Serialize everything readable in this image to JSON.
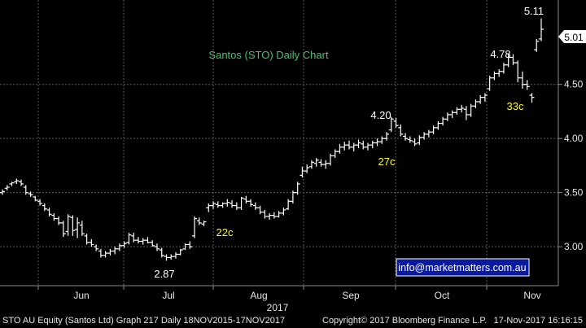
{
  "chart_data": {
    "type": "ohlc",
    "title": "Santos (STO) Daily Chart",
    "watermark": "info@marketmatters.com.au",
    "year_label": "2017",
    "ylim": [
      2.64,
      5.28
    ],
    "y_ticks": [
      "3.00",
      "3.50",
      "4.00",
      "4.50"
    ],
    "last_price": "5.01",
    "x_ticks": [
      "Jun",
      "Jul",
      "Aug",
      "Sep",
      "Oct",
      "Nov"
    ],
    "colors": {
      "background": "#000000",
      "grid": "#5a5a5a",
      "bars": "#ffffff",
      "title": "#4fbf73",
      "annotation_yellow": "#ffff00",
      "annotation_white": "#ffffff"
    },
    "annotations": [
      {
        "text": "5.11",
        "color": "white"
      },
      {
        "text": "4.78",
        "color": "white"
      },
      {
        "text": "4.20",
        "color": "white"
      },
      {
        "text": "2.87",
        "color": "white"
      },
      {
        "text": "33c",
        "color": "yellow"
      },
      {
        "text": "27c",
        "color": "yellow"
      },
      {
        "text": "22c",
        "color": "yellow"
      }
    ],
    "series": [
      {
        "values": [
          [
            3.5,
            3.53,
            3.48,
            3.51
          ],
          [
            3.54,
            3.57,
            3.52,
            3.55
          ],
          [
            3.58,
            3.6,
            3.56,
            3.59
          ],
          [
            3.6,
            3.63,
            3.58,
            3.61
          ],
          [
            3.6,
            3.62,
            3.56,
            3.58
          ],
          [
            3.55,
            3.57,
            3.48,
            3.5
          ],
          [
            3.49,
            3.51,
            3.46,
            3.48
          ],
          [
            3.46,
            3.47,
            3.42,
            3.43
          ],
          [
            3.42,
            3.44,
            3.38,
            3.4
          ],
          [
            3.38,
            3.4,
            3.33,
            3.35
          ],
          [
            3.34,
            3.36,
            3.28,
            3.3
          ],
          [
            3.29,
            3.31,
            3.24,
            3.26
          ],
          [
            3.26,
            3.28,
            3.2,
            3.22
          ],
          [
            3.22,
            3.24,
            3.09,
            3.12
          ],
          [
            3.14,
            3.3,
            3.1,
            3.28
          ],
          [
            3.27,
            3.29,
            3.1,
            3.15
          ],
          [
            3.16,
            3.27,
            3.08,
            3.22
          ],
          [
            3.2,
            3.24,
            3.1,
            3.12
          ],
          [
            3.1,
            3.12,
            3.02,
            3.04
          ],
          [
            3.04,
            3.07,
            3.0,
            3.02
          ],
          [
            3.0,
            3.02,
            2.96,
            2.98
          ],
          [
            2.96,
            2.98,
            2.9,
            2.92
          ],
          [
            2.92,
            2.96,
            2.9,
            2.94
          ],
          [
            2.94,
            2.98,
            2.92,
            2.96
          ],
          [
            2.96,
            3.0,
            2.93,
            2.98
          ],
          [
            2.98,
            3.03,
            2.96,
            3.01
          ],
          [
            3.01,
            3.05,
            2.99,
            3.03
          ],
          [
            3.04,
            3.13,
            3.02,
            3.11
          ],
          [
            3.1,
            3.13,
            3.04,
            3.06
          ],
          [
            3.06,
            3.09,
            3.03,
            3.05
          ],
          [
            3.05,
            3.08,
            3.02,
            3.06
          ],
          [
            3.06,
            3.09,
            3.03,
            3.04
          ],
          [
            3.04,
            3.06,
            3.0,
            3.01
          ],
          [
            3.0,
            3.03,
            2.96,
            2.98
          ],
          [
            2.97,
            2.99,
            2.9,
            2.92
          ],
          [
            2.91,
            2.93,
            2.87,
            2.9
          ],
          [
            2.9,
            2.93,
            2.88,
            2.91
          ],
          [
            2.91,
            2.95,
            2.89,
            2.93
          ],
          [
            2.93,
            2.98,
            2.92,
            2.97
          ],
          [
            2.98,
            3.03,
            2.97,
            3.02
          ],
          [
            3.02,
            3.05,
            2.98,
            3.0
          ],
          [
            3.1,
            3.28,
            3.08,
            3.26
          ],
          [
            3.24,
            3.27,
            3.2,
            3.22
          ],
          [
            3.21,
            3.24,
            3.19,
            3.23
          ],
          [
            3.36,
            3.4,
            3.32,
            3.38
          ],
          [
            3.38,
            3.42,
            3.35,
            3.4
          ],
          [
            3.39,
            3.42,
            3.36,
            3.38
          ],
          [
            3.38,
            3.41,
            3.36,
            3.4
          ],
          [
            3.4,
            3.44,
            3.37,
            3.41
          ],
          [
            3.4,
            3.43,
            3.36,
            3.38
          ],
          [
            3.38,
            3.41,
            3.34,
            3.36
          ],
          [
            3.36,
            3.46,
            3.34,
            3.45
          ],
          [
            3.44,
            3.47,
            3.4,
            3.42
          ],
          [
            3.42,
            3.44,
            3.37,
            3.39
          ],
          [
            3.38,
            3.41,
            3.34,
            3.36
          ],
          [
            3.36,
            3.38,
            3.3,
            3.32
          ],
          [
            3.32,
            3.34,
            3.26,
            3.28
          ],
          [
            3.28,
            3.31,
            3.25,
            3.29
          ],
          [
            3.29,
            3.32,
            3.26,
            3.28
          ],
          [
            3.28,
            3.33,
            3.27,
            3.31
          ],
          [
            3.31,
            3.36,
            3.29,
            3.34
          ],
          [
            3.35,
            3.44,
            3.34,
            3.42
          ],
          [
            3.42,
            3.52,
            3.4,
            3.5
          ],
          [
            3.5,
            3.6,
            3.48,
            3.58
          ],
          [
            3.66,
            3.74,
            3.64,
            3.7
          ],
          [
            3.7,
            3.76,
            3.68,
            3.73
          ],
          [
            3.74,
            3.8,
            3.72,
            3.78
          ],
          [
            3.77,
            3.82,
            3.74,
            3.8
          ],
          [
            3.78,
            3.81,
            3.74,
            3.76
          ],
          [
            3.76,
            3.8,
            3.72,
            3.77
          ],
          [
            3.77,
            3.86,
            3.75,
            3.84
          ],
          [
            3.84,
            3.9,
            3.82,
            3.88
          ],
          [
            3.88,
            3.95,
            3.86,
            3.92
          ],
          [
            3.92,
            3.97,
            3.89,
            3.94
          ],
          [
            3.94,
            3.98,
            3.9,
            3.92
          ],
          [
            3.92,
            3.96,
            3.88,
            3.94
          ],
          [
            3.94,
            3.99,
            3.91,
            3.96
          ],
          [
            3.95,
            3.98,
            3.9,
            3.92
          ],
          [
            3.92,
            3.96,
            3.89,
            3.94
          ],
          [
            3.94,
            3.98,
            3.91,
            3.96
          ],
          [
            3.96,
            4.0,
            3.93,
            3.97
          ],
          [
            3.97,
            4.02,
            3.95,
            4.0
          ],
          [
            4.0,
            4.06,
            3.98,
            4.04
          ],
          [
            4.08,
            4.2,
            4.06,
            4.18
          ],
          [
            4.16,
            4.19,
            4.1,
            4.12
          ],
          [
            4.1,
            4.13,
            4.02,
            4.04
          ],
          [
            4.02,
            4.05,
            3.98,
            4.0
          ],
          [
            3.99,
            4.02,
            3.96,
            3.98
          ],
          [
            3.97,
            4.0,
            3.93,
            3.95
          ],
          [
            3.96,
            4.03,
            3.94,
            4.01
          ],
          [
            4.01,
            4.06,
            3.99,
            4.04
          ],
          [
            4.04,
            4.08,
            4.01,
            4.06
          ],
          [
            4.06,
            4.12,
            4.04,
            4.1
          ],
          [
            4.1,
            4.16,
            4.08,
            4.14
          ],
          [
            4.14,
            4.2,
            4.12,
            4.18
          ],
          [
            4.18,
            4.24,
            4.16,
            4.22
          ],
          [
            4.22,
            4.26,
            4.19,
            4.24
          ],
          [
            4.24,
            4.29,
            4.22,
            4.27
          ],
          [
            4.27,
            4.31,
            4.24,
            4.28
          ],
          [
            4.27,
            4.3,
            4.17,
            4.22
          ],
          [
            4.22,
            4.32,
            4.2,
            4.3
          ],
          [
            4.3,
            4.36,
            4.28,
            4.34
          ],
          [
            4.34,
            4.4,
            4.32,
            4.38
          ],
          [
            4.38,
            4.42,
            4.34,
            4.4
          ],
          [
            4.46,
            4.58,
            4.44,
            4.56
          ],
          [
            4.56,
            4.62,
            4.54,
            4.6
          ],
          [
            4.6,
            4.64,
            4.57,
            4.62
          ],
          [
            4.62,
            4.7,
            4.6,
            4.68
          ],
          [
            4.68,
            4.78,
            4.66,
            4.75
          ],
          [
            4.75,
            4.78,
            4.68,
            4.7
          ],
          [
            4.7,
            4.72,
            4.52,
            4.56
          ],
          [
            4.56,
            4.62,
            4.46,
            4.5
          ],
          [
            4.5,
            4.54,
            4.45,
            4.48
          ],
          [
            4.4,
            4.42,
            4.33,
            4.38
          ],
          [
            4.82,
            4.92,
            4.8,
            4.9
          ],
          [
            4.92,
            5.11,
            4.9,
            5.01
          ]
        ]
      }
    ]
  },
  "footer": {
    "left": "STO AU Equity (Santos Ltd) Graph 217  Daily 18NOV2015-17NOV2017",
    "copyright": "Copyright© 2017 Bloomberg Finance L.P.",
    "right": "17-Nov-2017  16:16:15"
  }
}
